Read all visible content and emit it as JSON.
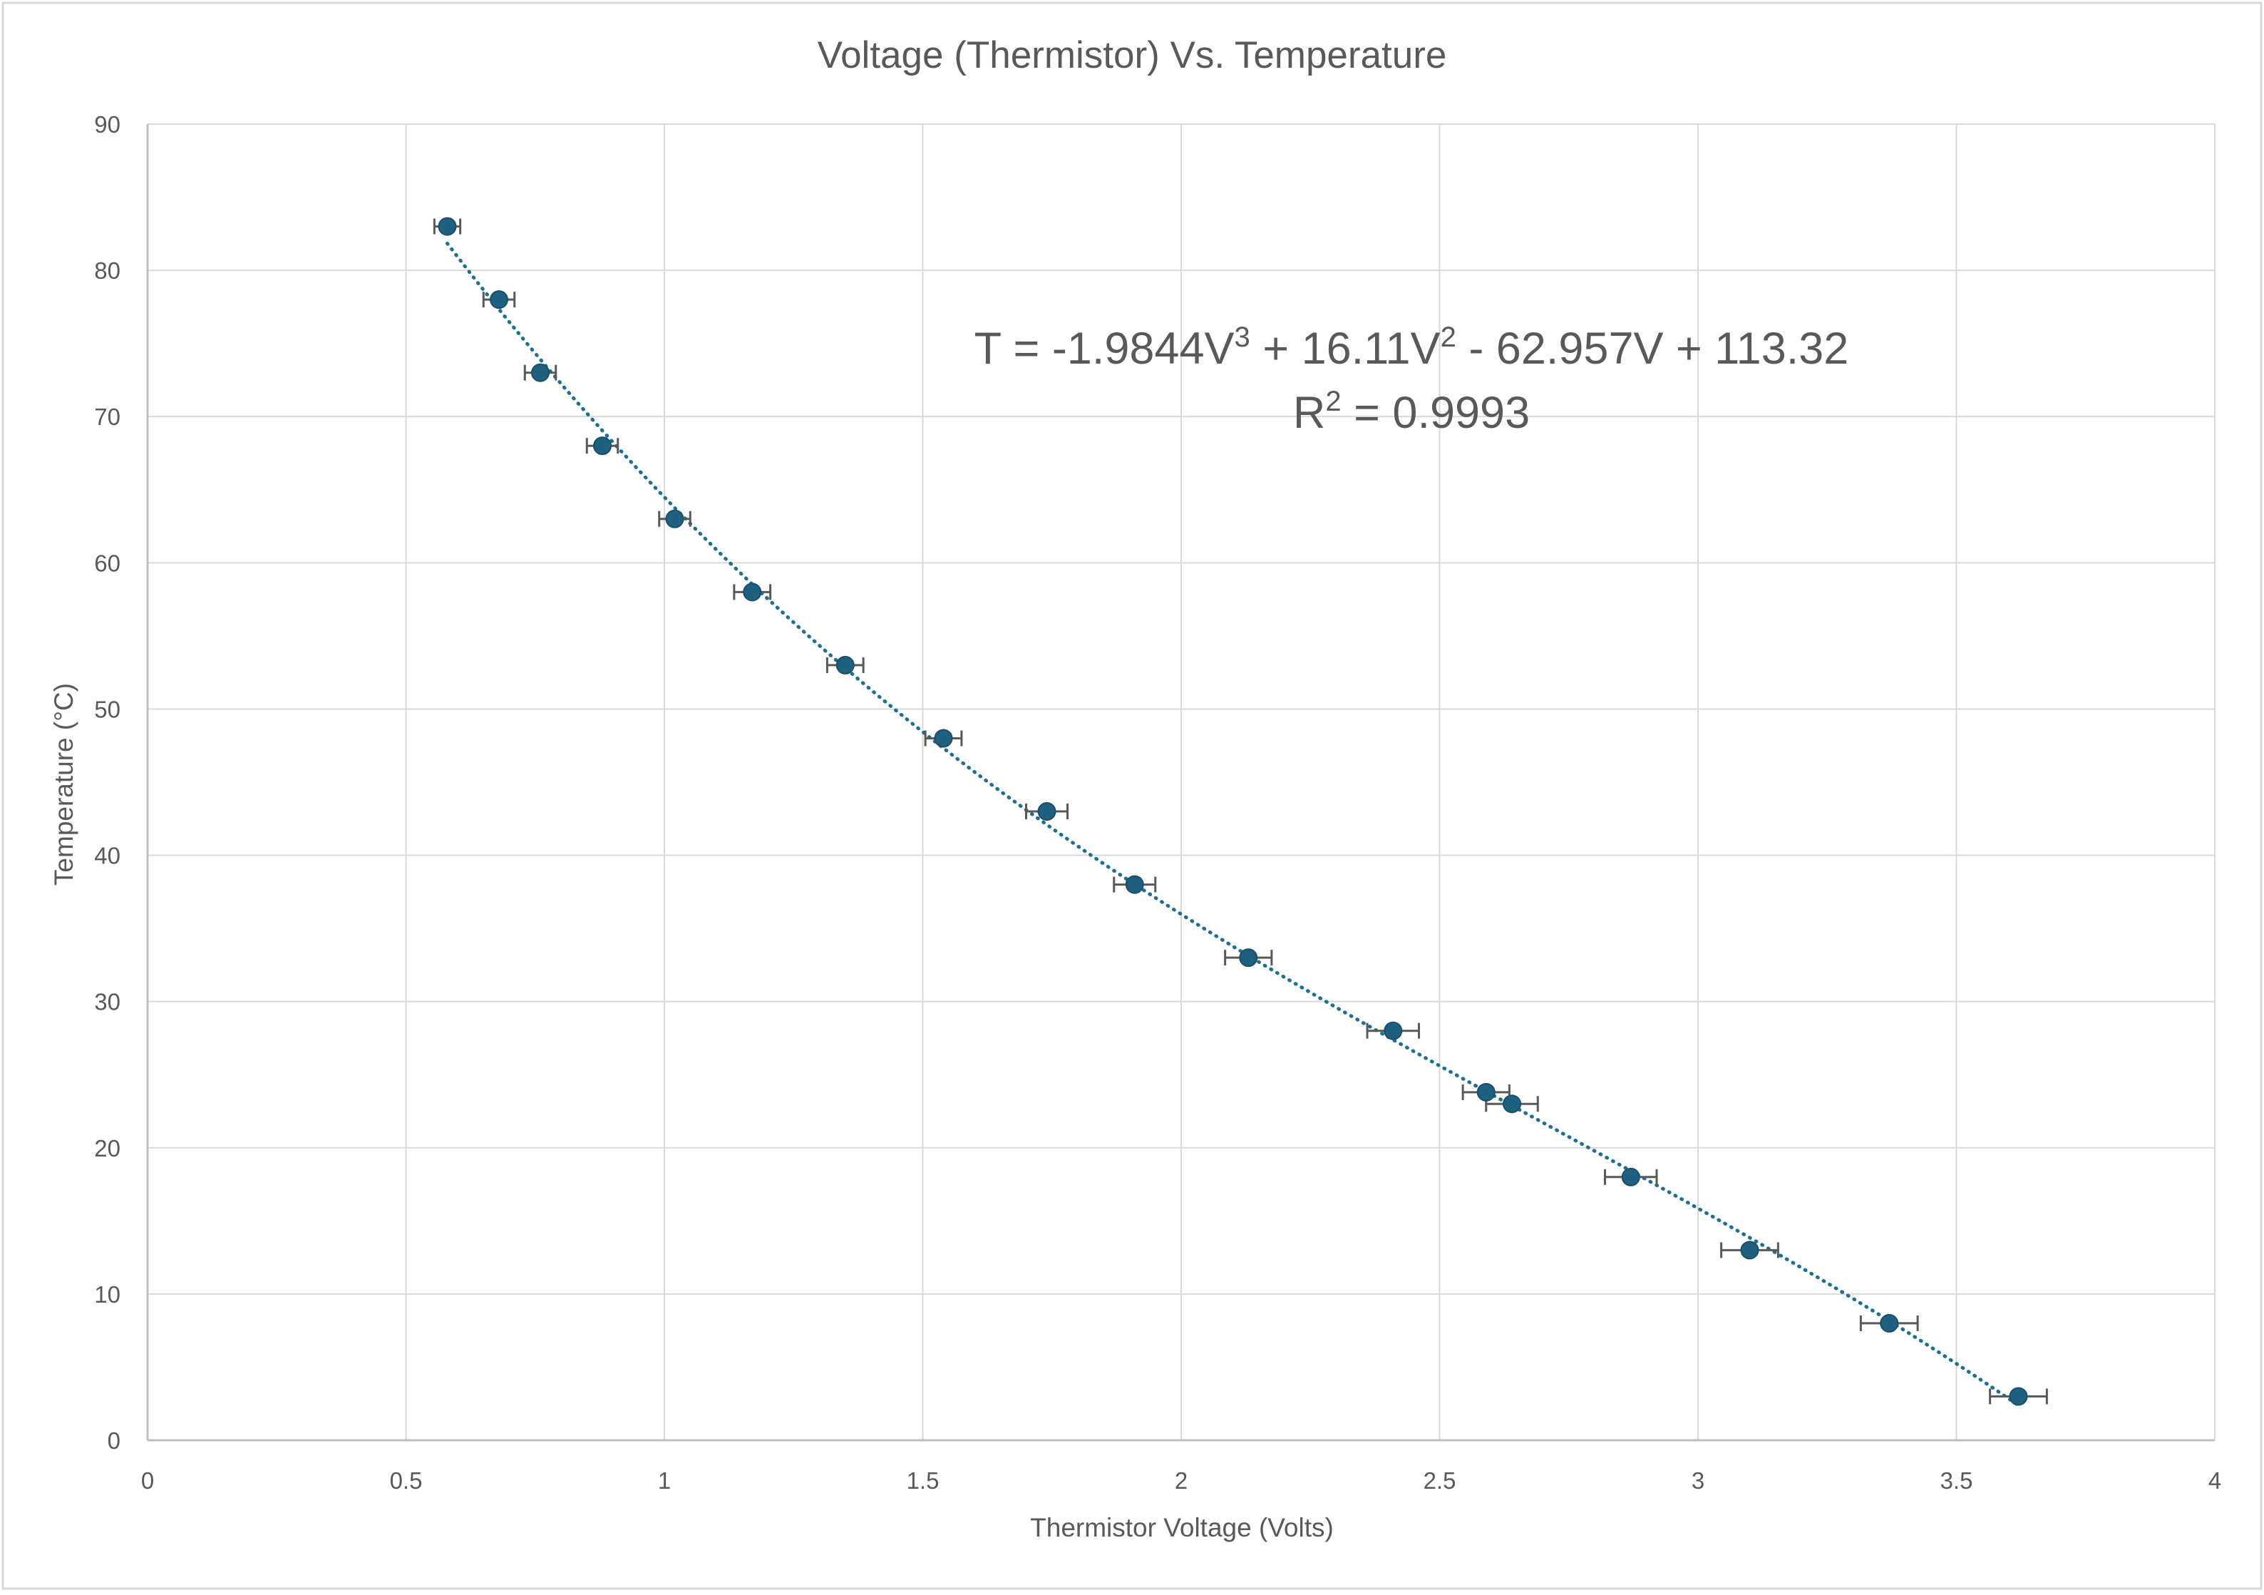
{
  "chart_data": {
    "type": "scatter",
    "title": "Voltage (Thermistor) Vs. Temperature",
    "xlabel": "Thermistor Voltage (Volts)",
    "ylabel": "Temperature (°C)",
    "xlim": [
      0,
      4
    ],
    "ylim": [
      0,
      90
    ],
    "x_ticks": [
      "0",
      "0.5",
      "1",
      "1.5",
      "2",
      "2.5",
      "3",
      "3.5",
      "4"
    ],
    "y_ticks": [
      "0",
      "10",
      "20",
      "30",
      "40",
      "50",
      "60",
      "70",
      "80",
      "90"
    ],
    "grid": true,
    "legend": "none",
    "colors": {
      "marker": "#1f5f7f",
      "trendline": "#1f6f8f",
      "error_bar": "#595959",
      "grid": "#d9d9d9",
      "text": "#595959"
    },
    "series": [
      {
        "x": [
          0.58,
          0.68,
          0.76,
          0.88,
          1.02,
          1.17,
          1.35,
          1.54,
          1.74,
          1.91,
          2.13,
          2.41,
          2.59,
          2.64,
          2.87,
          3.1,
          3.37,
          3.62
        ],
        "y": [
          83,
          78,
          73,
          68,
          63,
          58,
          53,
          48,
          43,
          38,
          33,
          28,
          23.8,
          23,
          18,
          13,
          8,
          3
        ],
        "x_error": [
          0.025,
          0.03,
          0.03,
          0.03,
          0.03,
          0.035,
          0.035,
          0.035,
          0.04,
          0.04,
          0.045,
          0.05,
          0.045,
          0.05,
          0.05,
          0.055,
          0.055,
          0.055
        ]
      }
    ],
    "trendline": {
      "type": "polynomial",
      "order": 3,
      "coefficients": [
        -1.9844,
        16.11,
        -62.957,
        113.32
      ],
      "style": "dotted",
      "equation_text": {
        "t": "T = -1.9844V",
        "sup1": "3",
        "mid": " + 16.11V",
        "sup2": "2",
        "end": " - 62.957V + 113.32"
      },
      "r2_text": {
        "r": "R",
        "sup": "2",
        "value": " = 0.9993"
      }
    }
  }
}
